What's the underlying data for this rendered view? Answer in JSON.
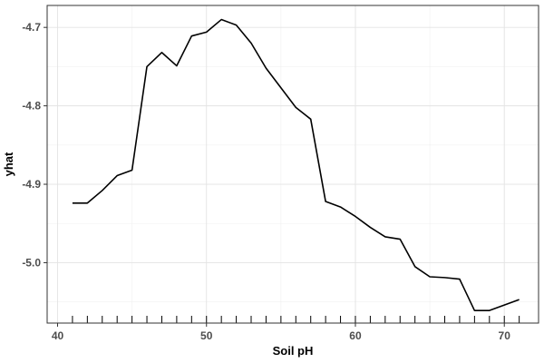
{
  "chart_data": {
    "type": "line",
    "xlabel": "Soil pH",
    "ylabel": "yhat",
    "xlim": [
      39.3,
      72.3
    ],
    "ylim": [
      -5.077,
      -4.672
    ],
    "x_ticks": [
      40,
      50,
      60,
      70
    ],
    "x_tick_labels": [
      "40",
      "50",
      "60",
      "70"
    ],
    "y_ticks": [
      -4.7,
      -4.8,
      -4.9,
      -5.0
    ],
    "y_tick_labels": [
      "-4.7",
      "-4.8",
      "-4.9",
      "-5.0"
    ],
    "grid": true,
    "legend": "none",
    "rug_x": [
      41,
      42,
      43,
      44,
      45,
      46,
      47,
      48,
      49,
      50,
      51,
      52,
      53,
      54,
      55,
      56,
      57,
      58,
      59,
      60,
      61,
      62,
      63,
      64,
      65,
      66,
      67,
      68,
      69,
      70,
      71
    ],
    "series": [
      {
        "color": "#000000",
        "x": [
          41,
          42,
          43,
          44,
          45,
          46,
          47,
          48,
          49,
          50,
          51,
          52,
          53,
          54,
          55,
          56,
          57,
          58,
          59,
          60,
          61,
          62,
          63,
          64,
          65,
          66,
          67,
          68,
          69,
          70,
          71
        ],
        "y": [
          -4.924,
          -4.924,
          -4.908,
          -4.889,
          -4.882,
          -4.75,
          -4.732,
          -4.749,
          -4.711,
          -4.706,
          -4.69,
          -4.697,
          -4.72,
          -4.752,
          -4.777,
          -4.802,
          -4.817,
          -4.922,
          -4.929,
          -4.941,
          -4.955,
          -4.967,
          -4.97,
          -5.005,
          -5.018,
          -5.019,
          -5.021,
          -5.061,
          -5.061,
          -5.054,
          -5.047
        ]
      }
    ]
  }
}
